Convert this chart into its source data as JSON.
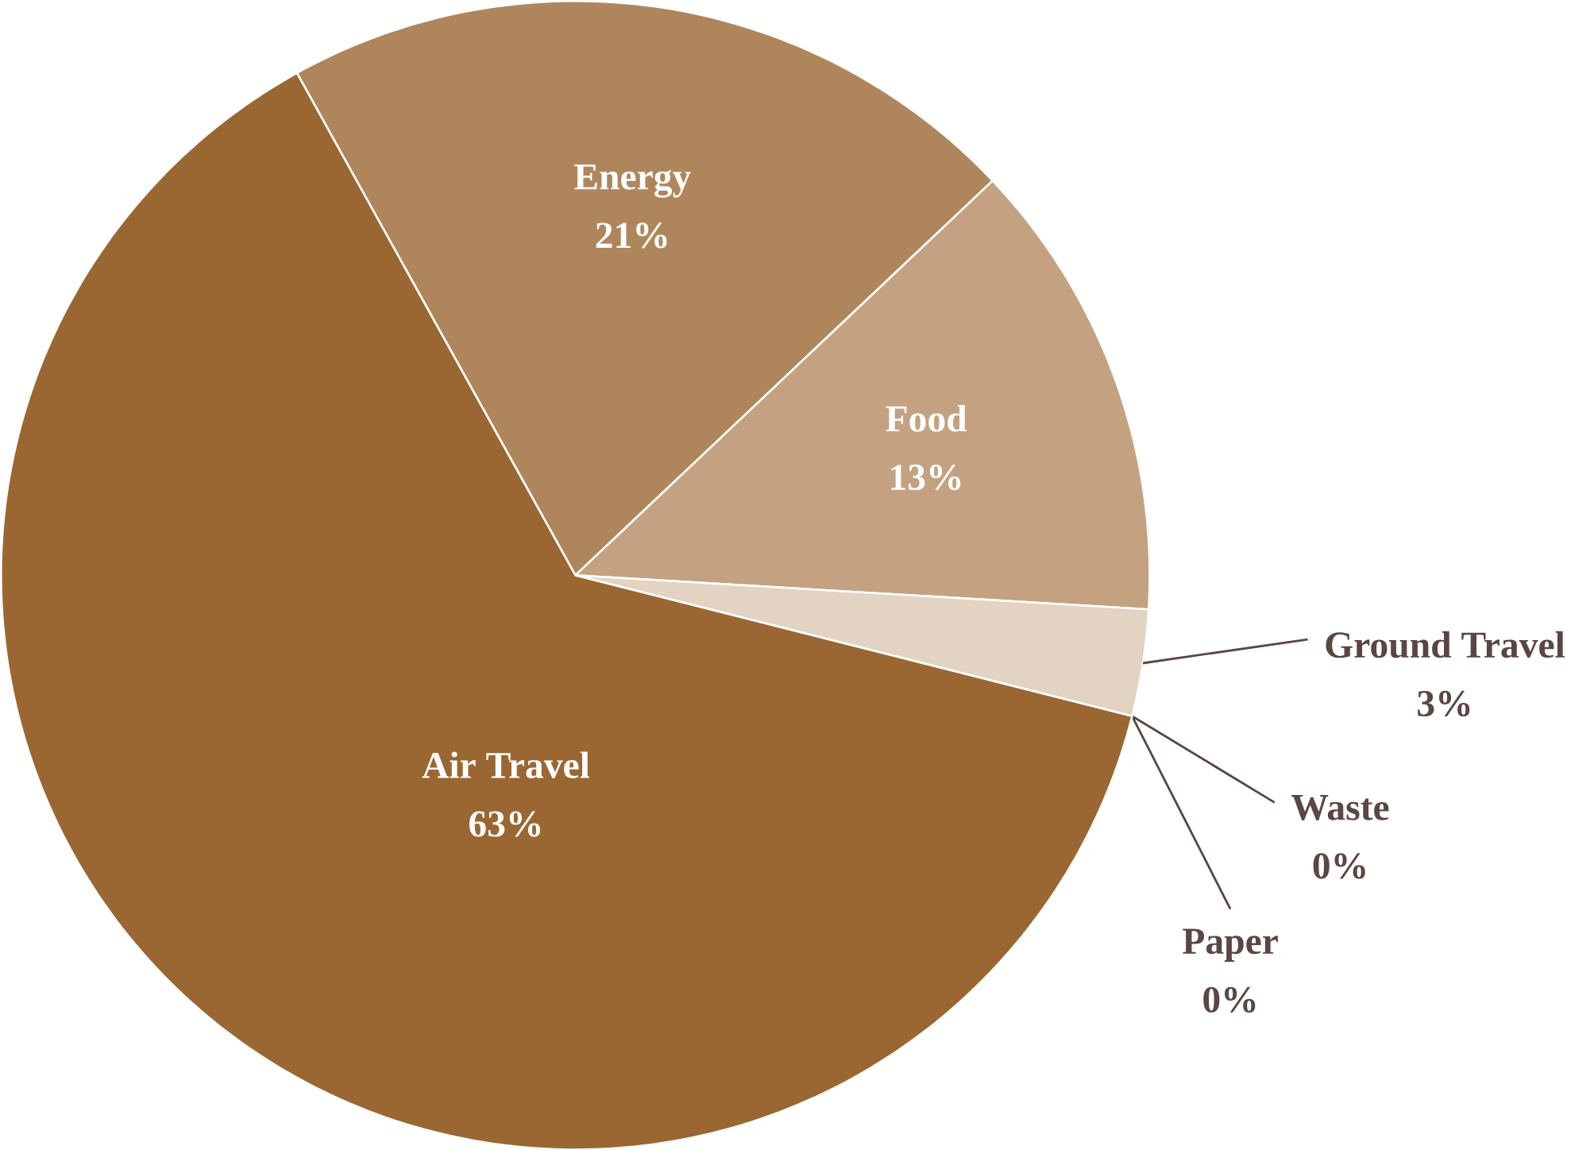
{
  "chart_data": {
    "type": "pie",
    "categories": [
      "Energy",
      "Food",
      "Ground Travel",
      "Waste",
      "Paper",
      "Air Travel"
    ],
    "values": [
      21,
      13,
      3,
      0,
      0,
      63
    ],
    "value_labels": [
      "21%",
      "13%",
      "3%",
      "0%",
      "0%",
      "63%"
    ],
    "colors": [
      "#af865c",
      "#c4a281",
      "#e2d3c3",
      "#e8dccf",
      "#ece3d9",
      "#9a6732"
    ]
  }
}
